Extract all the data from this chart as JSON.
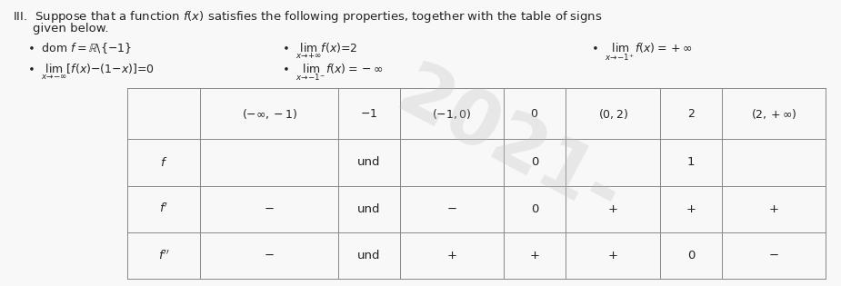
{
  "title_line1": "III.  Suppose that a function $f(x)$ satisfies the following properties, together with the table of signs",
  "title_line2": "given below.",
  "col_headers": [
    "$(-\\infty,-1)$",
    "$-1$",
    "$(-1,0)$",
    "$0$",
    "$(0,2)$",
    "$2$",
    "$(2,+\\infty)$"
  ],
  "row_labels": [
    "$f$",
    "$f'$",
    "$f''$"
  ],
  "table_data": [
    [
      "",
      "und",
      "",
      "0",
      "",
      "1",
      ""
    ],
    [
      "−",
      "und",
      "−",
      "0",
      "+",
      "+",
      "+"
    ],
    [
      "−",
      "und",
      "+",
      "+",
      "+",
      "0",
      "−"
    ]
  ],
  "background_color": "#f8f8f8",
  "text_color": "#222222",
  "table_line_color": "#888888",
  "font_size_title": 9.5,
  "font_size_body": 9.0,
  "font_size_table": 9.5,
  "watermark_text": "2021-",
  "watermark_color": "#c0c0c0",
  "watermark_alpha": 0.3
}
